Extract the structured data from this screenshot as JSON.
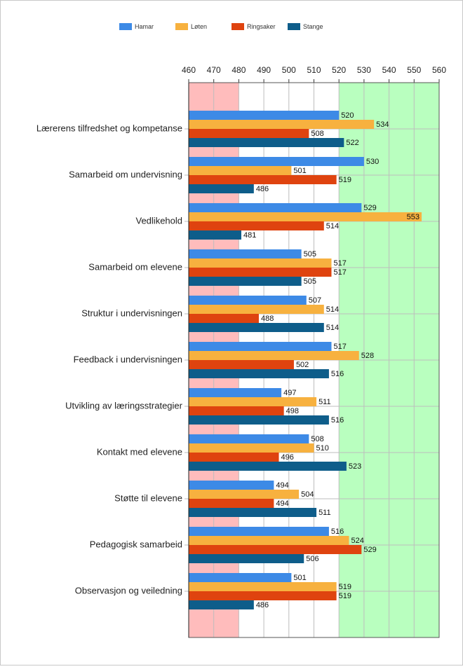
{
  "chart_data": {
    "type": "bar",
    "orientation": "horizontal",
    "categories": [
      "Lærerens tilfredshet og kompetanse",
      "Samarbeid om undervisning",
      "Vedlikehold",
      "Samarbeid om elevene",
      "Struktur i undervisningen",
      "Feedback i undervisningen",
      "Utvikling av læringsstrategier",
      "Kontakt med elevene",
      "Støtte til elevene",
      "Pedagogisk samarbeid",
      "Observasjon og veiledning"
    ],
    "series": [
      {
        "name": "Hamar",
        "color": "#3d8ae6",
        "values": [
          520,
          530,
          529,
          505,
          507,
          517,
          497,
          508,
          494,
          516,
          501
        ]
      },
      {
        "name": "Løten",
        "color": "#f7b13f",
        "values": [
          534,
          501,
          553,
          517,
          514,
          528,
          511,
          510,
          504,
          524,
          519
        ]
      },
      {
        "name": "Ringsaker",
        "color": "#df430f",
        "values": [
          508,
          519,
          514,
          517,
          488,
          502,
          498,
          496,
          494,
          529,
          519
        ]
      },
      {
        "name": "Stange",
        "color": "#0e5d8a",
        "values": [
          522,
          486,
          481,
          505,
          514,
          516,
          516,
          523,
          511,
          506,
          486
        ]
      }
    ],
    "xlim": [
      460,
      560
    ],
    "xticks": [
      460,
      470,
      480,
      490,
      500,
      510,
      520,
      530,
      540,
      550,
      560
    ],
    "shaded_ranges": [
      {
        "from": 460,
        "to": 480,
        "color": "#ffbcbc"
      },
      {
        "from": 520,
        "to": 560,
        "color": "#b9ffbf"
      }
    ],
    "grid": true,
    "legend": "top"
  }
}
